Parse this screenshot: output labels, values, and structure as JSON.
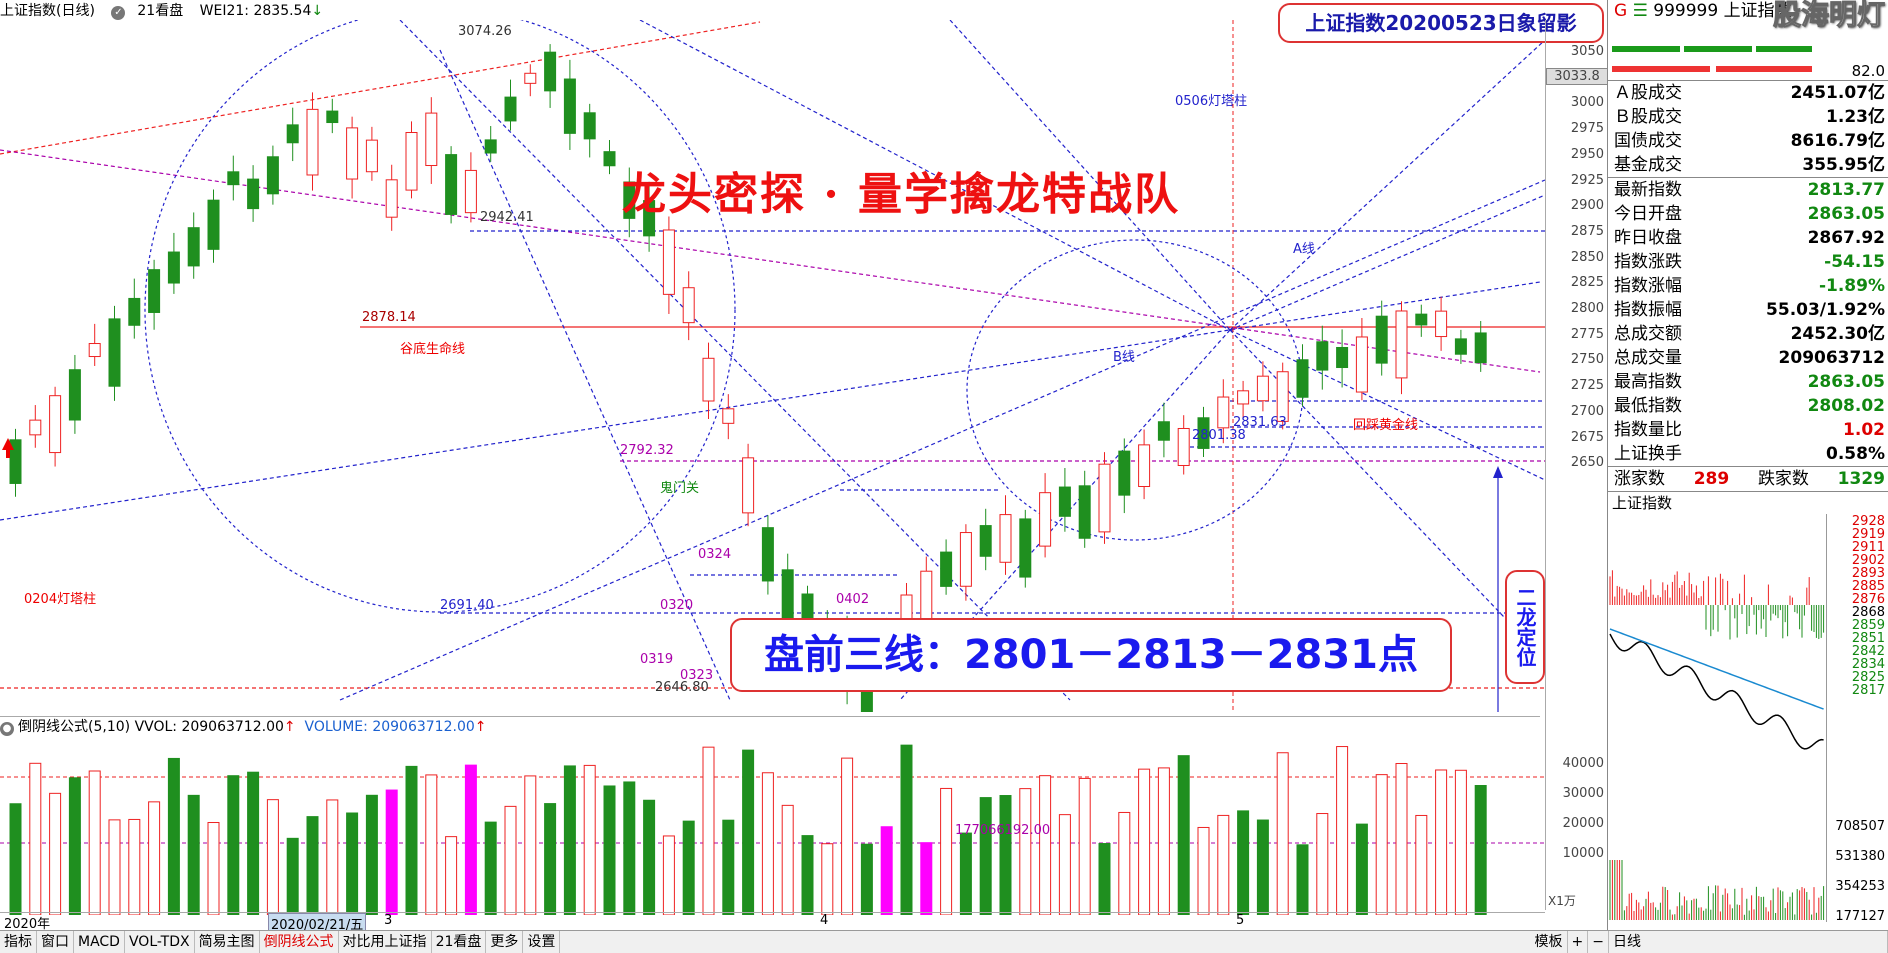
{
  "title_bar": {
    "name": "上证指数(日线)",
    "mode_icon": "check-circle-icon",
    "mode": "21看盘",
    "indicator": "WEI21: 2835.54",
    "indicator_arrow": "↓"
  },
  "banner_top": "上证指数20200523日象留影",
  "headline": "龙头密探 · 量学擒龙特战队",
  "banner_bottom": "盘前三线：2801－2813－2831点",
  "vertical_note": "二龙定位",
  "annotations": {
    "high_label": "3074.26",
    "low_label": "2646.80",
    "a_line": "A线",
    "b_line": "B线",
    "tower_0204": "0204灯塔柱",
    "tower_0506": "0506灯塔柱",
    "valley_life": "谷底生命线",
    "golden_line": "回踩黄金线",
    "ghost_gate": "鬼门关",
    "p2942": "2942.41",
    "p2878": "2878.14",
    "p2792": "2792.32",
    "p2691": "2691.40",
    "p2831": "2831.63",
    "p2801": "2801.38",
    "d0319": "0319",
    "d0320": "0320",
    "d0323": "0323",
    "d0324": "0324",
    "d0402": "0402",
    "vol_ref": "177066192.00"
  },
  "y_axis": {
    "price_badge": "3033.8",
    "ticks": [
      "3050",
      "3025",
      "3000",
      "2975",
      "2950",
      "2925",
      "2900",
      "2875",
      "2850",
      "2825",
      "2800",
      "2775",
      "2750",
      "2725",
      "2700",
      "2675",
      "2650"
    ],
    "vol_ticks": [
      "40000",
      "30000",
      "20000",
      "10000"
    ],
    "vol_unit": "X1万"
  },
  "volume_bar": {
    "title": "倒阴线公式(5,10)",
    "vvol": "VVOL: 209063712.00",
    "vvol_arrow": "↑",
    "volume": "VOLUME: 209063712.00",
    "volume_arrow": "↑"
  },
  "date_axis": {
    "year": "2020年",
    "cursor_date": "2020/02/21/五",
    "m3": "3",
    "m4": "4",
    "m5": "5"
  },
  "bottom_tabs": [
    "指标",
    "窗口",
    "MACD",
    "VOL-TDX",
    "简易主图",
    "倒阴线公式",
    "对比用上证指",
    "21看盘",
    "更多",
    "设置"
  ],
  "bottom_right": {
    "template": "模板",
    "plus": "+",
    "minus": "−",
    "period": "日线"
  },
  "panel": {
    "code_prefix": "G",
    "code": "999999",
    "name": "上证指数",
    "watermark": "股海明灯",
    "value_top": "82.0",
    "rows_a": [
      {
        "label": "Ａ股成交",
        "value": "2451.07亿",
        "tone": ""
      },
      {
        "label": "Ｂ股成交",
        "value": "1.23亿",
        "tone": ""
      },
      {
        "label": "国债成交",
        "value": "8616.79亿",
        "tone": ""
      },
      {
        "label": "基金成交",
        "value": "355.95亿",
        "tone": ""
      }
    ],
    "rows_b": [
      {
        "label": "最新指数",
        "value": "2813.77",
        "tone": "green"
      },
      {
        "label": "今日开盘",
        "value": "2863.05",
        "tone": "green"
      },
      {
        "label": "昨日收盘",
        "value": "2867.92",
        "tone": ""
      },
      {
        "label": "指数涨跌",
        "value": "-54.15",
        "tone": "green"
      },
      {
        "label": "指数涨幅",
        "value": "-1.89%",
        "tone": "green"
      },
      {
        "label": "指数振幅",
        "value": "55.03/1.92%",
        "tone": ""
      },
      {
        "label": "总成交额",
        "value": "2452.30亿",
        "tone": ""
      },
      {
        "label": "总成交量",
        "value": "209063712",
        "tone": ""
      },
      {
        "label": "最高指数",
        "value": "2863.05",
        "tone": "green"
      },
      {
        "label": "最低指数",
        "value": "2808.02",
        "tone": "green"
      },
      {
        "label": "指数量比",
        "value": "1.02",
        "tone": "red"
      },
      {
        "label": "上证换手",
        "value": "0.58%",
        "tone": ""
      }
    ],
    "up_label": "涨家数",
    "up_value": "289",
    "down_label": "跌家数",
    "down_value": "1329",
    "mini_title": "上证指数",
    "mini_ticks": [
      "2928",
      "2919",
      "2911",
      "2902",
      "2893",
      "2885",
      "2876",
      "2868",
      "2859",
      "2851",
      "2842",
      "2834",
      "2825",
      "2817"
    ],
    "mini_vol_ticks": [
      "708507",
      "531380",
      "354253",
      "177127"
    ]
  }
}
